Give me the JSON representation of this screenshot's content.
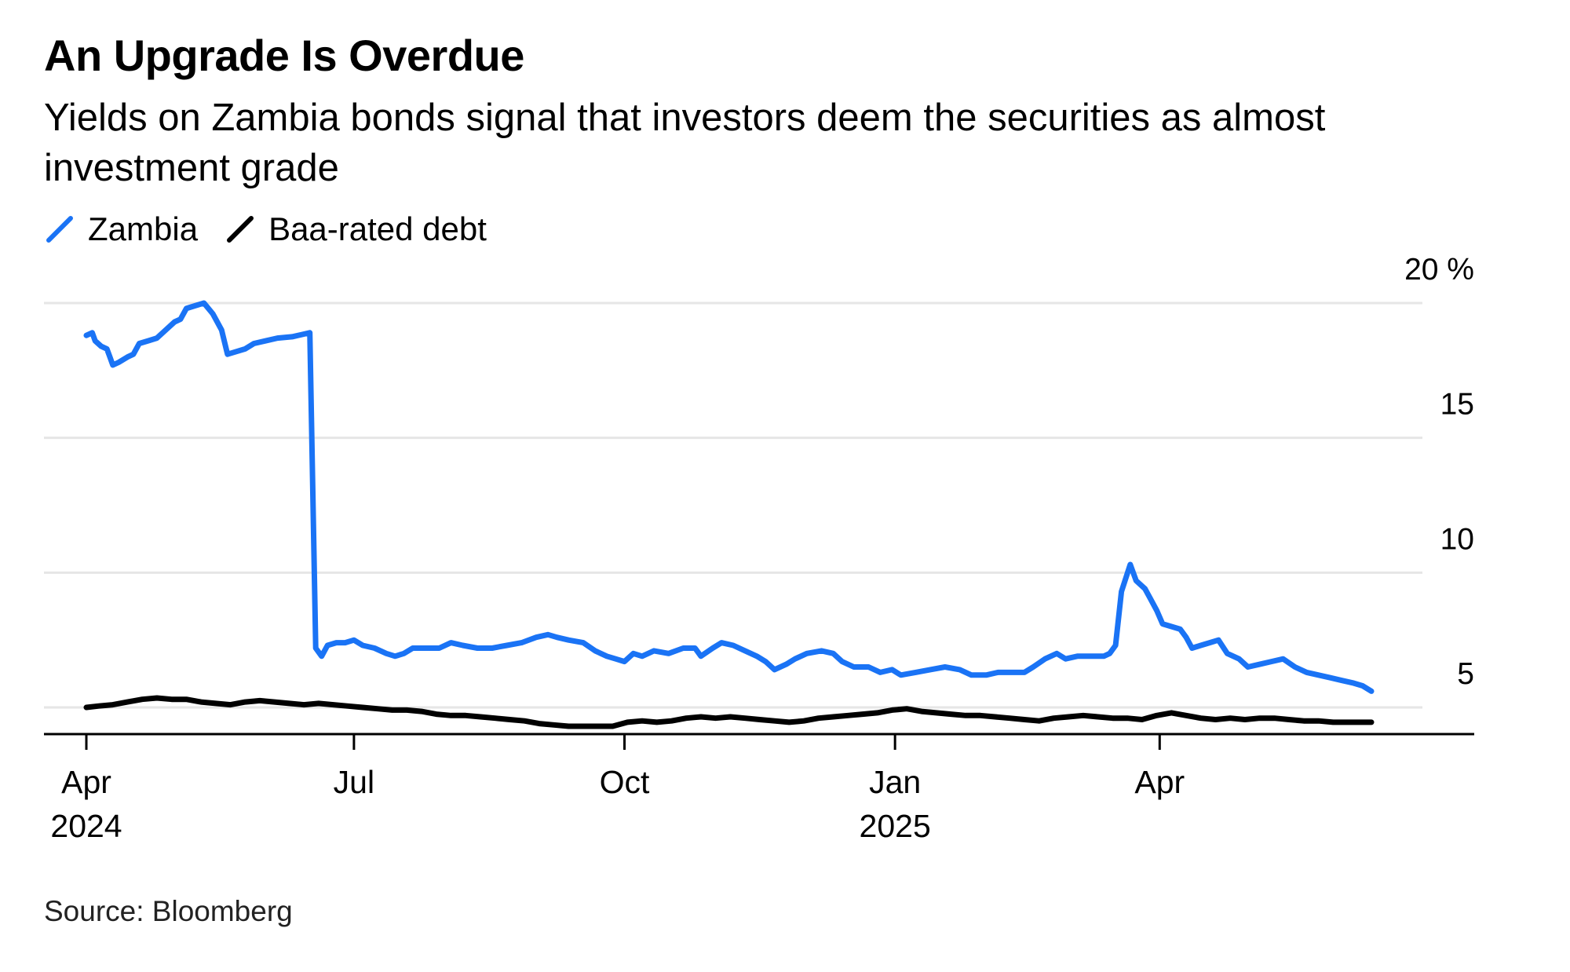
{
  "title": "An Upgrade Is Overdue",
  "subtitle": "Yields on Zambia bonds signal that investors deem the securities as almost investment grade",
  "source": "Source: Bloomberg",
  "colors": {
    "zambia": "#1a73f5",
    "baa": "#000000",
    "grid": "#e6e6e6",
    "axis": "#000000"
  },
  "chart_data": {
    "type": "line",
    "title": "An Upgrade Is Overdue",
    "subtitle": "Yields on Zambia bonds signal that investors deem the securities as almost investment grade",
    "xlabel": "",
    "ylabel": "",
    "y_unit": "%",
    "xlim": [
      "2024-03-25",
      "2025-07-15"
    ],
    "ylim": [
      4,
      20
    ],
    "grid": true,
    "y_axis_side": "right",
    "legend_position": "top-left",
    "y_ticks": [
      {
        "value": 20,
        "label": "20 %"
      },
      {
        "value": 15,
        "label": "15"
      },
      {
        "value": 10,
        "label": "10"
      },
      {
        "value": 5,
        "label": "5"
      }
    ],
    "x_ticks": [
      {
        "date": "2024-04-01",
        "label": "Apr",
        "sublabel": "2024"
      },
      {
        "date": "2024-07-01",
        "label": "Jul",
        "sublabel": ""
      },
      {
        "date": "2024-10-01",
        "label": "Oct",
        "sublabel": ""
      },
      {
        "date": "2025-01-01",
        "label": "Jan",
        "sublabel": "2025"
      },
      {
        "date": "2025-04-01",
        "label": "Apr",
        "sublabel": ""
      }
    ],
    "series": [
      {
        "name": "Zambia",
        "color": "#1a73f5",
        "points": [
          [
            "2024-04-01",
            18.8
          ],
          [
            "2024-04-03",
            18.9
          ],
          [
            "2024-04-04",
            18.6
          ],
          [
            "2024-04-06",
            18.4
          ],
          [
            "2024-04-08",
            18.3
          ],
          [
            "2024-04-09",
            18.0
          ],
          [
            "2024-04-10",
            17.7
          ],
          [
            "2024-04-12",
            17.8
          ],
          [
            "2024-04-15",
            18.0
          ],
          [
            "2024-04-17",
            18.1
          ],
          [
            "2024-04-19",
            18.5
          ],
          [
            "2024-04-22",
            18.6
          ],
          [
            "2024-04-25",
            18.7
          ],
          [
            "2024-04-28",
            19.0
          ],
          [
            "2024-05-01",
            19.3
          ],
          [
            "2024-05-03",
            19.4
          ],
          [
            "2024-05-05",
            19.8
          ],
          [
            "2024-05-08",
            19.9
          ],
          [
            "2024-05-11",
            20.0
          ],
          [
            "2024-05-14",
            19.6
          ],
          [
            "2024-05-17",
            19.0
          ],
          [
            "2024-05-19",
            18.1
          ],
          [
            "2024-05-22",
            18.2
          ],
          [
            "2024-05-25",
            18.3
          ],
          [
            "2024-05-28",
            18.5
          ],
          [
            "2024-06-01",
            18.6
          ],
          [
            "2024-06-05",
            18.7
          ],
          [
            "2024-06-10",
            18.75
          ],
          [
            "2024-06-14",
            18.85
          ],
          [
            "2024-06-16",
            18.9
          ],
          [
            "2024-06-18",
            7.2
          ],
          [
            "2024-06-20",
            6.9
          ],
          [
            "2024-06-22",
            7.3
          ],
          [
            "2024-06-25",
            7.4
          ],
          [
            "2024-06-28",
            7.4
          ],
          [
            "2024-07-01",
            7.5
          ],
          [
            "2024-07-04",
            7.3
          ],
          [
            "2024-07-08",
            7.2
          ],
          [
            "2024-07-12",
            7.0
          ],
          [
            "2024-07-15",
            6.9
          ],
          [
            "2024-07-18",
            7.0
          ],
          [
            "2024-07-21",
            7.2
          ],
          [
            "2024-07-25",
            7.2
          ],
          [
            "2024-07-30",
            7.2
          ],
          [
            "2024-08-03",
            7.4
          ],
          [
            "2024-08-07",
            7.3
          ],
          [
            "2024-08-12",
            7.2
          ],
          [
            "2024-08-17",
            7.2
          ],
          [
            "2024-08-22",
            7.3
          ],
          [
            "2024-08-27",
            7.4
          ],
          [
            "2024-09-01",
            7.6
          ],
          [
            "2024-09-05",
            7.7
          ],
          [
            "2024-09-08",
            7.6
          ],
          [
            "2024-09-12",
            7.5
          ],
          [
            "2024-09-17",
            7.4
          ],
          [
            "2024-09-21",
            7.1
          ],
          [
            "2024-09-25",
            6.9
          ],
          [
            "2024-09-28",
            6.8
          ],
          [
            "2024-10-01",
            6.7
          ],
          [
            "2024-10-04",
            7.0
          ],
          [
            "2024-10-07",
            6.9
          ],
          [
            "2024-10-11",
            7.1
          ],
          [
            "2024-10-16",
            7.0
          ],
          [
            "2024-10-21",
            7.2
          ],
          [
            "2024-10-25",
            7.2
          ],
          [
            "2024-10-27",
            6.9
          ],
          [
            "2024-10-31",
            7.2
          ],
          [
            "2024-11-03",
            7.4
          ],
          [
            "2024-11-07",
            7.3
          ],
          [
            "2024-11-11",
            7.1
          ],
          [
            "2024-11-15",
            6.9
          ],
          [
            "2024-11-18",
            6.7
          ],
          [
            "2024-11-21",
            6.4
          ],
          [
            "2024-11-25",
            6.6
          ],
          [
            "2024-11-28",
            6.8
          ],
          [
            "2024-12-02",
            7.0
          ],
          [
            "2024-12-07",
            7.1
          ],
          [
            "2024-12-11",
            7.0
          ],
          [
            "2024-12-14",
            6.7
          ],
          [
            "2024-12-18",
            6.5
          ],
          [
            "2024-12-23",
            6.5
          ],
          [
            "2024-12-27",
            6.3
          ],
          [
            "2024-12-31",
            6.4
          ],
          [
            "2025-01-03",
            6.2
          ],
          [
            "2025-01-08",
            6.3
          ],
          [
            "2025-01-13",
            6.4
          ],
          [
            "2025-01-18",
            6.5
          ],
          [
            "2025-01-23",
            6.4
          ],
          [
            "2025-01-27",
            6.2
          ],
          [
            "2025-02-01",
            6.2
          ],
          [
            "2025-02-05",
            6.3
          ],
          [
            "2025-02-10",
            6.3
          ],
          [
            "2025-02-14",
            6.3
          ],
          [
            "2025-02-17",
            6.5
          ],
          [
            "2025-02-21",
            6.8
          ],
          [
            "2025-02-25",
            7.0
          ],
          [
            "2025-02-28",
            6.8
          ],
          [
            "2025-03-04",
            6.9
          ],
          [
            "2025-03-09",
            6.9
          ],
          [
            "2025-03-13",
            6.9
          ],
          [
            "2025-03-15",
            7.0
          ],
          [
            "2025-03-17",
            7.3
          ],
          [
            "2025-03-19",
            9.3
          ],
          [
            "2025-03-22",
            10.3
          ],
          [
            "2025-03-24",
            9.7
          ],
          [
            "2025-03-25",
            9.6
          ],
          [
            "2025-03-27",
            9.4
          ],
          [
            "2025-03-29",
            9.0
          ],
          [
            "2025-03-31",
            8.6
          ],
          [
            "2025-04-02",
            8.1
          ],
          [
            "2025-04-05",
            8.0
          ],
          [
            "2025-04-08",
            7.9
          ],
          [
            "2025-04-10",
            7.6
          ],
          [
            "2025-04-12",
            7.2
          ],
          [
            "2025-04-15",
            7.3
          ],
          [
            "2025-04-18",
            7.4
          ],
          [
            "2025-04-21",
            7.5
          ],
          [
            "2025-04-24",
            7.0
          ],
          [
            "2025-04-28",
            6.8
          ],
          [
            "2025-05-01",
            6.5
          ],
          [
            "2025-05-05",
            6.6
          ],
          [
            "2025-05-09",
            6.7
          ],
          [
            "2025-05-13",
            6.8
          ],
          [
            "2025-05-17",
            6.5
          ],
          [
            "2025-05-21",
            6.3
          ],
          [
            "2025-05-25",
            6.2
          ],
          [
            "2025-05-29",
            6.1
          ],
          [
            "2025-06-02",
            6.0
          ],
          [
            "2025-06-06",
            5.9
          ],
          [
            "2025-06-09",
            5.8
          ],
          [
            "2025-06-12",
            5.6
          ]
        ]
      },
      {
        "name": "Baa-rated debt",
        "color": "#000000",
        "points": [
          [
            "2024-04-01",
            5.0
          ],
          [
            "2024-04-05",
            5.05
          ],
          [
            "2024-04-10",
            5.1
          ],
          [
            "2024-04-15",
            5.2
          ],
          [
            "2024-04-20",
            5.3
          ],
          [
            "2024-04-25",
            5.35
          ],
          [
            "2024-04-30",
            5.3
          ],
          [
            "2024-05-05",
            5.3
          ],
          [
            "2024-05-10",
            5.2
          ],
          [
            "2024-05-15",
            5.15
          ],
          [
            "2024-05-20",
            5.1
          ],
          [
            "2024-05-25",
            5.2
          ],
          [
            "2024-05-30",
            5.25
          ],
          [
            "2024-06-04",
            5.2
          ],
          [
            "2024-06-09",
            5.15
          ],
          [
            "2024-06-14",
            5.1
          ],
          [
            "2024-06-19",
            5.15
          ],
          [
            "2024-06-24",
            5.1
          ],
          [
            "2024-06-29",
            5.05
          ],
          [
            "2024-07-04",
            5.0
          ],
          [
            "2024-07-09",
            4.95
          ],
          [
            "2024-07-14",
            4.9
          ],
          [
            "2024-07-19",
            4.9
          ],
          [
            "2024-07-24",
            4.85
          ],
          [
            "2024-07-29",
            4.75
          ],
          [
            "2024-08-03",
            4.7
          ],
          [
            "2024-08-08",
            4.7
          ],
          [
            "2024-08-13",
            4.65
          ],
          [
            "2024-08-18",
            4.6
          ],
          [
            "2024-08-23",
            4.55
          ],
          [
            "2024-08-28",
            4.5
          ],
          [
            "2024-09-02",
            4.4
          ],
          [
            "2024-09-07",
            4.35
          ],
          [
            "2024-09-12",
            4.3
          ],
          [
            "2024-09-17",
            4.3
          ],
          [
            "2024-09-22",
            4.3
          ],
          [
            "2024-09-27",
            4.3
          ],
          [
            "2024-10-02",
            4.45
          ],
          [
            "2024-10-07",
            4.5
          ],
          [
            "2024-10-12",
            4.45
          ],
          [
            "2024-10-17",
            4.5
          ],
          [
            "2024-10-22",
            4.6
          ],
          [
            "2024-10-27",
            4.65
          ],
          [
            "2024-11-01",
            4.6
          ],
          [
            "2024-11-06",
            4.65
          ],
          [
            "2024-11-11",
            4.6
          ],
          [
            "2024-11-16",
            4.55
          ],
          [
            "2024-11-21",
            4.5
          ],
          [
            "2024-11-26",
            4.45
          ],
          [
            "2024-12-01",
            4.5
          ],
          [
            "2024-12-06",
            4.6
          ],
          [
            "2024-12-11",
            4.65
          ],
          [
            "2024-12-16",
            4.7
          ],
          [
            "2024-12-21",
            4.75
          ],
          [
            "2024-12-26",
            4.8
          ],
          [
            "2024-12-31",
            4.9
          ],
          [
            "2025-01-05",
            4.95
          ],
          [
            "2025-01-10",
            4.85
          ],
          [
            "2025-01-15",
            4.8
          ],
          [
            "2025-01-20",
            4.75
          ],
          [
            "2025-01-25",
            4.7
          ],
          [
            "2025-01-30",
            4.7
          ],
          [
            "2025-02-04",
            4.65
          ],
          [
            "2025-02-09",
            4.6
          ],
          [
            "2025-02-14",
            4.55
          ],
          [
            "2025-02-19",
            4.5
          ],
          [
            "2025-02-24",
            4.6
          ],
          [
            "2025-03-01",
            4.65
          ],
          [
            "2025-03-06",
            4.7
          ],
          [
            "2025-03-11",
            4.65
          ],
          [
            "2025-03-16",
            4.6
          ],
          [
            "2025-03-21",
            4.6
          ],
          [
            "2025-03-26",
            4.55
          ],
          [
            "2025-03-31",
            4.7
          ],
          [
            "2025-04-05",
            4.8
          ],
          [
            "2025-04-10",
            4.7
          ],
          [
            "2025-04-15",
            4.6
          ],
          [
            "2025-04-20",
            4.55
          ],
          [
            "2025-04-25",
            4.6
          ],
          [
            "2025-04-30",
            4.55
          ],
          [
            "2025-05-05",
            4.6
          ],
          [
            "2025-05-10",
            4.6
          ],
          [
            "2025-05-15",
            4.55
          ],
          [
            "2025-05-20",
            4.5
          ],
          [
            "2025-05-25",
            4.5
          ],
          [
            "2025-05-30",
            4.45
          ],
          [
            "2025-06-04",
            4.45
          ],
          [
            "2025-06-09",
            4.45
          ],
          [
            "2025-06-12",
            4.45
          ]
        ]
      }
    ]
  }
}
